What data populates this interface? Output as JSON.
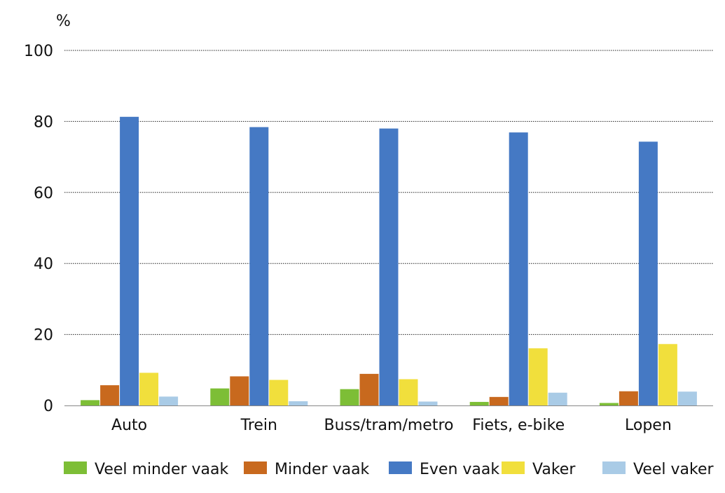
{
  "chart_data": {
    "type": "bar",
    "title": "",
    "xlabel": "",
    "ylabel": "%",
    "ylim": [
      0,
      100
    ],
    "yticks": [
      0,
      20,
      40,
      60,
      80,
      100
    ],
    "grid": true,
    "legend_position": "bottom",
    "categories": [
      "Auto",
      "Trein",
      "Buss/tram/metro",
      "Fiets, e-bike",
      "Lopen"
    ],
    "series": [
      {
        "name": "Veel minder vaak",
        "color": "#7dbe36",
        "values": [
          1.5,
          4.8,
          4.6,
          1.0,
          0.7
        ]
      },
      {
        "name": "Minder vaak",
        "color": "#c8691e",
        "values": [
          5.7,
          8.2,
          8.9,
          2.4,
          4.0
        ]
      },
      {
        "name": "Even vaak",
        "color": "#4579c4",
        "values": [
          81.3,
          78.4,
          78.0,
          76.9,
          74.3
        ]
      },
      {
        "name": "Vaker",
        "color": "#f1df3c",
        "values": [
          9.2,
          7.2,
          7.4,
          16.1,
          17.3
        ]
      },
      {
        "name": "Veel vaker",
        "color": "#a9cbe6",
        "values": [
          2.5,
          1.2,
          1.1,
          3.6,
          3.9
        ]
      }
    ]
  }
}
